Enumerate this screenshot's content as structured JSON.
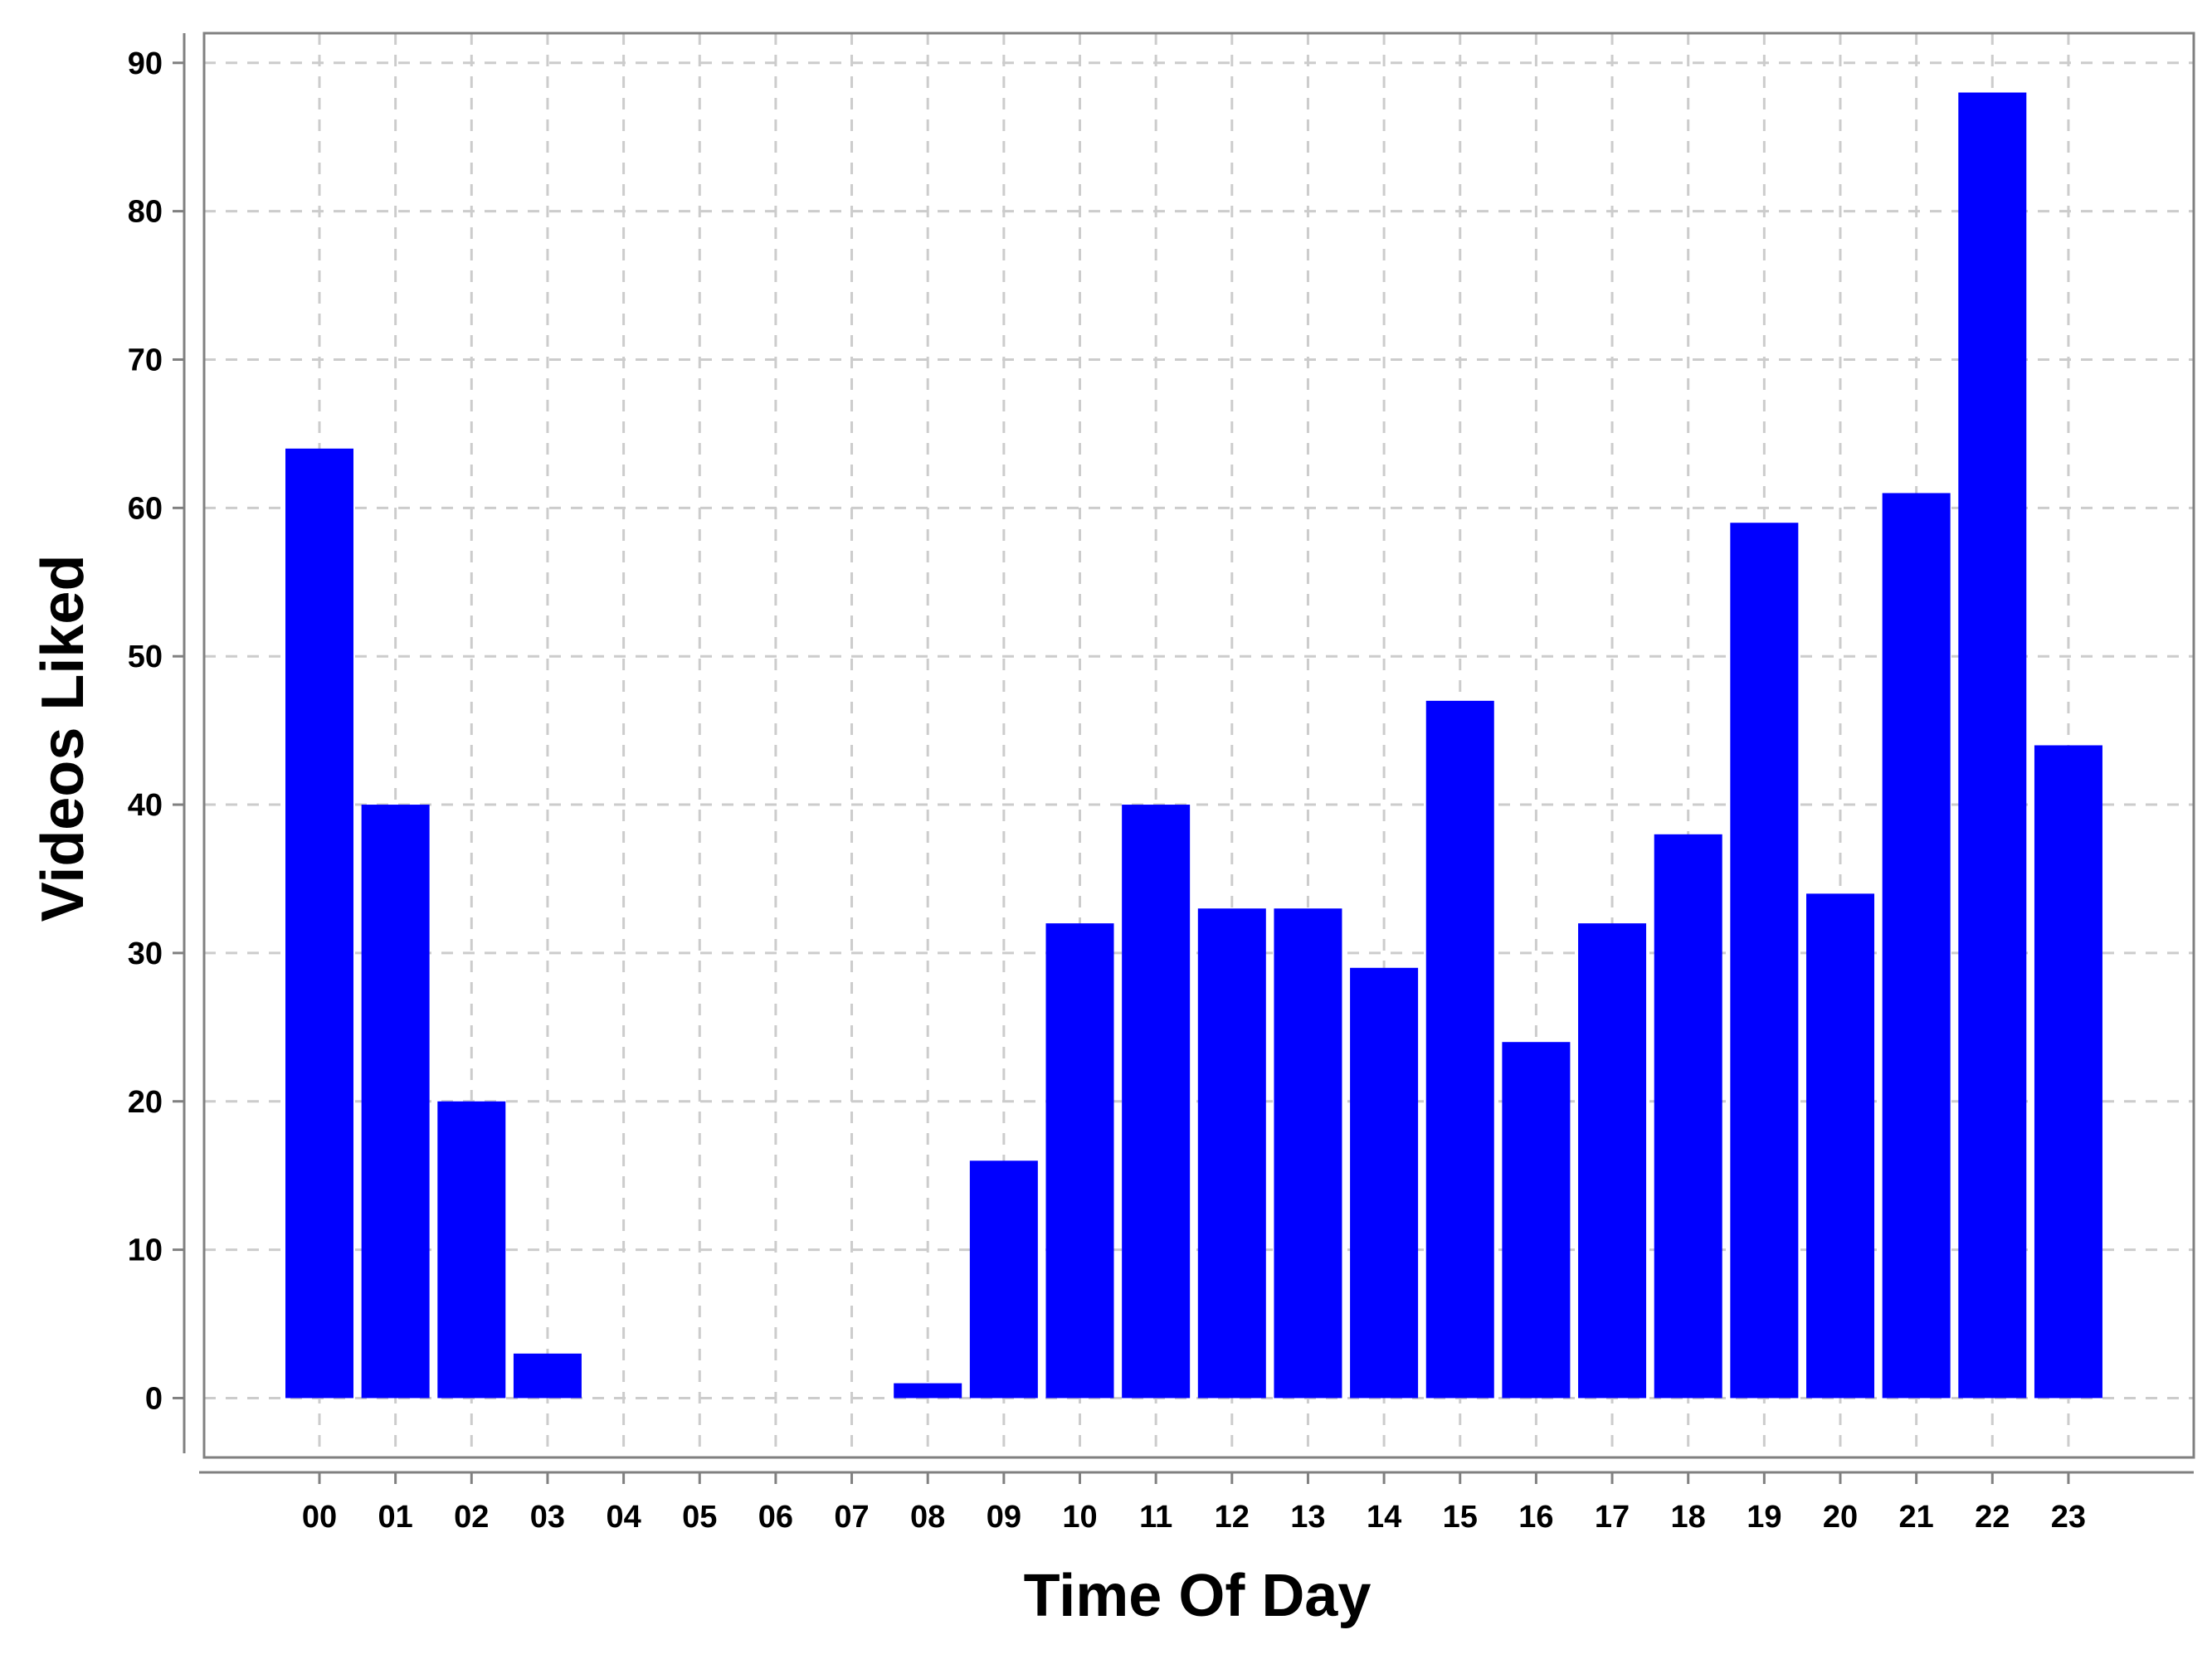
{
  "chart_data": {
    "type": "bar",
    "title": "",
    "xlabel": "Time Of Day",
    "ylabel": "Videos Liked",
    "categories": [
      "00",
      "01",
      "02",
      "03",
      "04",
      "05",
      "06",
      "07",
      "08",
      "09",
      "10",
      "11",
      "12",
      "13",
      "14",
      "15",
      "16",
      "17",
      "18",
      "19",
      "20",
      "21",
      "22",
      "23"
    ],
    "values": [
      64,
      40,
      20,
      3,
      0,
      0,
      0,
      0,
      1,
      16,
      32,
      40,
      33,
      33,
      29,
      47,
      24,
      32,
      38,
      59,
      34,
      61,
      88,
      44
    ],
    "yticks": [
      "0",
      "10",
      "20",
      "30",
      "40",
      "50",
      "60",
      "70",
      "80",
      "90"
    ],
    "ylim": [
      -4,
      92
    ],
    "grid": true,
    "legend": "none",
    "bar_color": "#0000ff",
    "grid_color": "#cccccc",
    "axis_color": "#808080"
  }
}
